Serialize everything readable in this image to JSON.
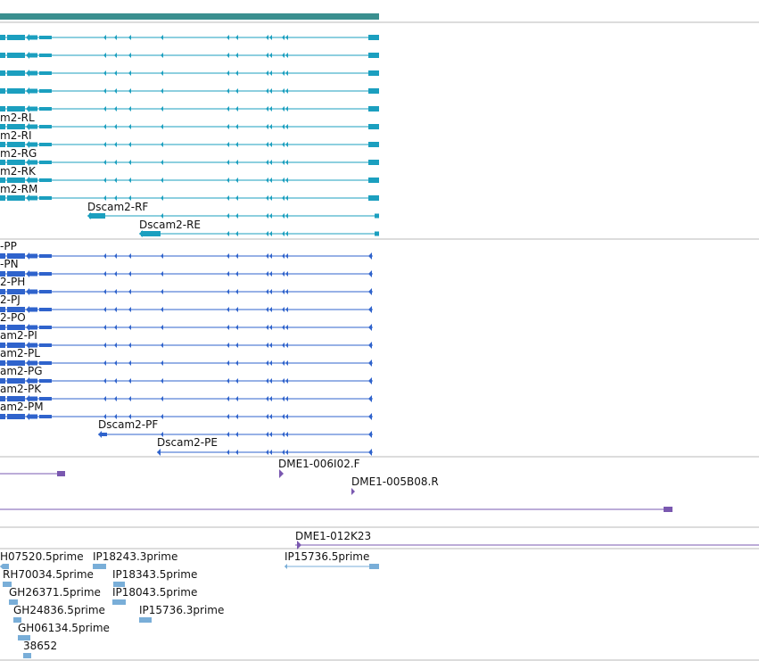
{
  "colors": {
    "background": "#ffffff",
    "separator": "#b8b8b8",
    "gene_bar": "#3a8f8f",
    "transcripts_r": "#1b9fbf",
    "transcripts_p": "#2f63cc",
    "clones": "#7a58b0",
    "ests": "#79aed8",
    "label": "#111111"
  },
  "gene_bar": {
    "name": "gene-span"
  },
  "transcripts_r": [
    {
      "label": ""
    },
    {
      "label": ""
    },
    {
      "label": ""
    },
    {
      "label": ""
    },
    {
      "label": ""
    },
    {
      "label": "m2-RL"
    },
    {
      "label": "m2-RI"
    },
    {
      "label": "m2-RG"
    },
    {
      "label": "m2-RK"
    },
    {
      "label": "m2-RM"
    },
    {
      "label": "Dscam2-RF"
    },
    {
      "label": "Dscam2-RE"
    }
  ],
  "transcripts_p": [
    {
      "label": "-PP"
    },
    {
      "label": "-PN"
    },
    {
      "label": "2-PH"
    },
    {
      "label": "2-PJ"
    },
    {
      "label": "2-PO"
    },
    {
      "label": "am2-PI"
    },
    {
      "label": "am2-PL"
    },
    {
      "label": "am2-PG"
    },
    {
      "label": "am2-PK"
    },
    {
      "label": "am2-PM"
    },
    {
      "label": "Dscam2-PF"
    },
    {
      "label": "Dscam2-PE"
    }
  ],
  "clones": [
    {
      "label": ""
    },
    {
      "label": "DME1-006I02.F"
    },
    {
      "label": "DME1-005B08.R"
    },
    {
      "label": ""
    },
    {
      "label": "DME1-012K23"
    }
  ],
  "ests": [
    {
      "label": "H07520.5prime"
    },
    {
      "label": "IP18243.3prime"
    },
    {
      "label": "IP15736.5prime"
    },
    {
      "label": "RH70034.5prime"
    },
    {
      "label": "IP18343.5prime"
    },
    {
      "label": "GH26371.5prime"
    },
    {
      "label": "IP18043.5prime"
    },
    {
      "label": "GH24836.5prime"
    },
    {
      "label": "IP15736.3prime"
    },
    {
      "label": "GH06134.5prime"
    },
    {
      "label": "38652"
    }
  ]
}
